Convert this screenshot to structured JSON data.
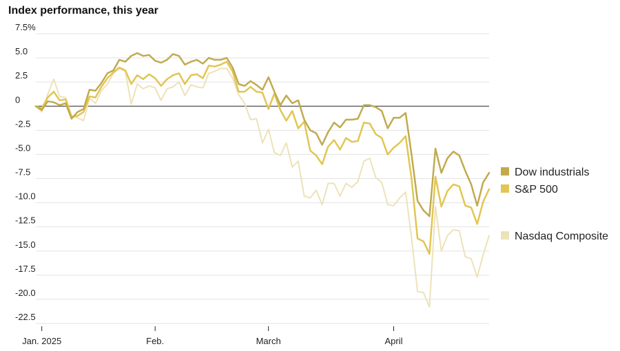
{
  "chart_data": {
    "type": "line",
    "title": "Index performance, this year",
    "xlabel": "",
    "ylabel": "",
    "ylim": [
      -22.5,
      7.5
    ],
    "y_ticks": [
      7.5,
      5.0,
      2.5,
      0,
      -2.5,
      -5.0,
      -7.5,
      -10.0,
      -12.5,
      -15.0,
      -17.5,
      -20.0,
      -22.5
    ],
    "y_tick_labels": [
      "7.5%",
      "5.0",
      "2.5",
      "0",
      "-2.5",
      "-5.0",
      "-7.5",
      "-10.0",
      "-12.5",
      "-15.0",
      "-17.5",
      "-20.0",
      "-22.5"
    ],
    "x_ticks": [
      {
        "label": "Jan. 2025",
        "index": 1
      },
      {
        "label": "Feb.",
        "index": 20
      },
      {
        "label": "March",
        "index": 39
      },
      {
        "label": "April",
        "index": 60
      }
    ],
    "grid": true,
    "legend_position": "right",
    "series": [
      {
        "name": "Dow industrials",
        "color": "#c1aa4e",
        "width": 2.5,
        "values": [
          0,
          -0.4,
          0.5,
          0.4,
          0.1,
          0.3,
          -1.3,
          -0.6,
          -0.3,
          1.7,
          1.6,
          2.4,
          3.4,
          3.7,
          4.8,
          4.6,
          5.2,
          5.5,
          5.2,
          5.3,
          4.7,
          4.5,
          4.8,
          5.4,
          5.2,
          4.3,
          4.6,
          4.8,
          4.4,
          5.0,
          4.8,
          4.8,
          5.0,
          4.0,
          2.3,
          2.1,
          2.6,
          2.2,
          1.7,
          3.0,
          1.5,
          0.1,
          1.1,
          0.3,
          0.6,
          -1.4,
          -2.5,
          -2.8,
          -4.0,
          -2.7,
          -1.7,
          -2.2,
          -1.4,
          -1.4,
          -1.3,
          0.1,
          0.1,
          -0.1,
          -0.5,
          -2.3,
          -1.2,
          -1.2,
          -0.7,
          -5.0,
          -9.8,
          -10.8,
          -11.4,
          -4.4,
          -6.9,
          -5.4,
          -4.7,
          -5.1,
          -6.7,
          -8.1,
          -10.3,
          -7.9,
          -6.9
        ]
      },
      {
        "name": "S&P 500",
        "color": "#e2c552",
        "width": 2.5,
        "values": [
          0,
          -0.2,
          0.9,
          1.5,
          0.6,
          0.7,
          -1.1,
          -1.0,
          -0.6,
          1.0,
          0.9,
          2.0,
          2.9,
          3.5,
          4.0,
          3.7,
          2.3,
          3.2,
          2.8,
          3.3,
          2.9,
          2.1,
          2.8,
          3.2,
          3.4,
          2.3,
          3.2,
          3.3,
          2.9,
          4.2,
          4.1,
          4.3,
          4.6,
          3.6,
          1.5,
          1.5,
          2.0,
          1.5,
          1.4,
          -0.3,
          1.3,
          -0.4,
          -1.5,
          -0.5,
          -2.3,
          -1.6,
          -4.6,
          -5.1,
          -6.0,
          -4.2,
          -3.5,
          -4.5,
          -3.3,
          -3.7,
          -3.6,
          -1.7,
          -1.8,
          -2.9,
          -3.3,
          -5.0,
          -4.3,
          -3.8,
          -3.1,
          -7.5,
          -13.7,
          -14.0,
          -15.3,
          -7.3,
          -10.4,
          -8.8,
          -8.1,
          -8.3,
          -10.3,
          -10.5,
          -12.2,
          -9.9,
          -8.6
        ]
      },
      {
        "name": "Nasdaq Composite",
        "color": "#ede2b8",
        "width": 2,
        "values": [
          0,
          -0.6,
          1.2,
          2.8,
          1.0,
          0.9,
          -1.0,
          -1.2,
          -1.5,
          0.8,
          0.3,
          1.6,
          2.3,
          3.4,
          3.9,
          3.6,
          0.2,
          2.3,
          1.8,
          2.1,
          1.9,
          0.6,
          1.8,
          2.0,
          2.5,
          1.1,
          2.2,
          2.0,
          1.9,
          3.4,
          3.6,
          3.9,
          3.9,
          2.9,
          1.2,
          0.3,
          -1.4,
          -1.3,
          -3.8,
          -2.4,
          -4.8,
          -5.1,
          -3.8,
          -6.3,
          -5.7,
          -9.3,
          -9.5,
          -8.7,
          -10.2,
          -8.0,
          -8.0,
          -9.3,
          -8.0,
          -8.4,
          -7.8,
          -5.7,
          -5.4,
          -7.4,
          -7.9,
          -10.2,
          -10.3,
          -9.5,
          -8.9,
          -13.6,
          -19.2,
          -19.3,
          -20.8,
          -10.4,
          -15.0,
          -13.4,
          -12.8,
          -12.9,
          -15.6,
          -15.8,
          -17.7,
          -15.4,
          -13.4
        ]
      }
    ]
  }
}
